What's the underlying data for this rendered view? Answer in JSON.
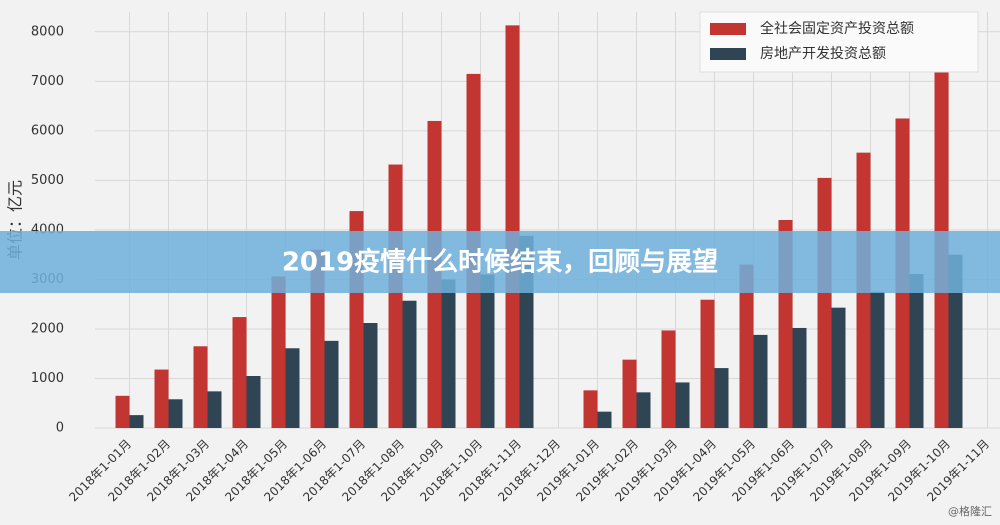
{
  "chart_data": {
    "type": "bar",
    "categories": [
      "2018年1-01月",
      "2018年1-02月",
      "2018年1-03月",
      "2018年1-04月",
      "2018年1-05月",
      "2018年1-06月",
      "2018年1-07月",
      "2018年1-08月",
      "2018年1-09月",
      "2018年1-10月",
      "2018年1-11月",
      "2018年1-12月",
      "2019年1-01月",
      "2019年1-02月",
      "2019年1-03月",
      "2019年1-04月",
      "2019年1-05月",
      "2019年1-06月",
      "2019年1-07月",
      "2019年1-08月",
      "2019年1-09月",
      "2019年1-10月",
      "2019年1-11月"
    ],
    "series": [
      {
        "name": "全社会固定资产投资总额",
        "color": "#c23531",
        "values": [
          650,
          1180,
          1650,
          2240,
          3060,
          3600,
          4380,
          5320,
          6200,
          7150,
          8130,
          null,
          760,
          1380,
          1970,
          2590,
          3300,
          4200,
          5050,
          5560,
          6250,
          7180,
          null
        ]
      },
      {
        "name": "房地产开发投资总额",
        "color": "#2f4554",
        "values": [
          260,
          580,
          740,
          1050,
          1610,
          1760,
          2120,
          2570,
          3000,
          3100,
          3880,
          null,
          330,
          720,
          920,
          1210,
          1880,
          2020,
          2430,
          2750,
          3110,
          3500,
          null
        ]
      }
    ],
    "y_label": "单位：亿元",
    "ylim": [
      0,
      8400
    ],
    "yticks": [
      0,
      1000,
      2000,
      3000,
      4000,
      5000,
      6000,
      7000,
      8000
    ],
    "grid": true,
    "legend": "top-right"
  },
  "banner": {
    "title": "2019疫情什么时候结束，回顾与展望"
  },
  "watermark": "@格隆汇"
}
